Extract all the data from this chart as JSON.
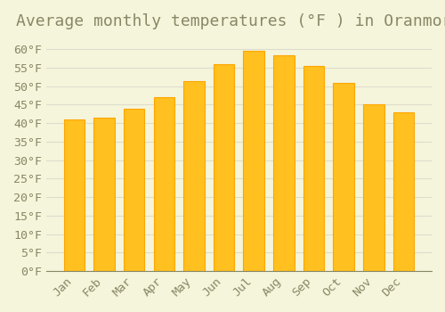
{
  "title": "Average monthly temperatures (°F ) in Oranmore",
  "months": [
    "Jan",
    "Feb",
    "Mar",
    "Apr",
    "May",
    "Jun",
    "Jul",
    "Aug",
    "Sep",
    "Oct",
    "Nov",
    "Dec"
  ],
  "values": [
    41,
    41.5,
    44,
    47,
    51.5,
    56,
    59.5,
    58.5,
    55.5,
    51,
    45,
    43
  ],
  "bar_color": "#FFC020",
  "bar_edge_color": "#FFA500",
  "background_color": "#F5F5DC",
  "grid_color": "#DDDDCC",
  "text_color": "#888866",
  "ylim": [
    0,
    63
  ],
  "yticks": [
    0,
    5,
    10,
    15,
    20,
    25,
    30,
    35,
    40,
    45,
    50,
    55,
    60
  ],
  "title_fontsize": 13,
  "tick_fontsize": 9.5
}
